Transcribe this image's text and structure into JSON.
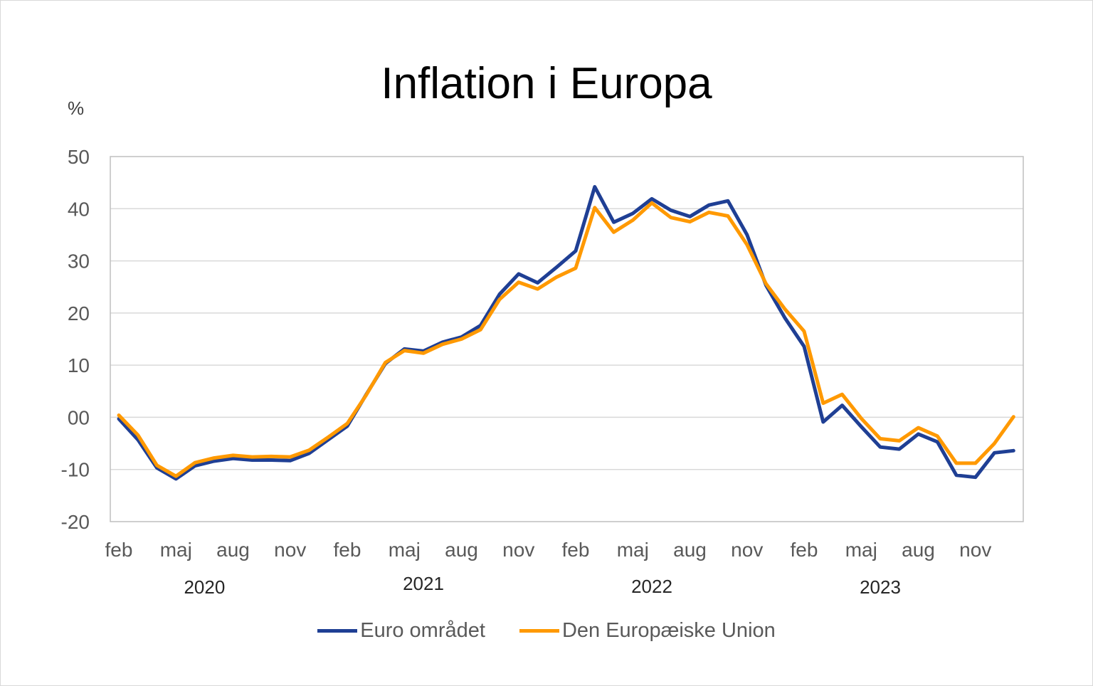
{
  "chart_data": {
    "type": "line",
    "title": "Inflation i Europa",
    "ylabel": "%",
    "xlabel": "",
    "ylim": [
      -20,
      50
    ],
    "yticks": [
      "-20",
      "-10",
      "00",
      "10",
      "20",
      "30",
      "40",
      "50"
    ],
    "ytick_values": [
      -20,
      -10,
      0,
      10,
      20,
      30,
      40,
      50
    ],
    "grid": true,
    "legend_position": "bottom",
    "x_month_labels": [
      {
        "label": "feb",
        "index": 0
      },
      {
        "label": "maj",
        "index": 3
      },
      {
        "label": "aug",
        "index": 6
      },
      {
        "label": "nov",
        "index": 9
      },
      {
        "label": "feb",
        "index": 12
      },
      {
        "label": "maj",
        "index": 15
      },
      {
        "label": "aug",
        "index": 18
      },
      {
        "label": "nov",
        "index": 21
      },
      {
        "label": "feb",
        "index": 24
      },
      {
        "label": "maj",
        "index": 27
      },
      {
        "label": "aug",
        "index": 30
      },
      {
        "label": "nov",
        "index": 33
      },
      {
        "label": "feb",
        "index": 36
      },
      {
        "label": "maj",
        "index": 39
      },
      {
        "label": "aug",
        "index": 42
      },
      {
        "label": "nov",
        "index": 45
      }
    ],
    "x_year_labels": [
      {
        "label": "2020",
        "center": 4.5
      },
      {
        "label": "2021",
        "center": 16
      },
      {
        "label": "2022",
        "center": 28
      },
      {
        "label": "2023",
        "center": 40
      }
    ],
    "series": [
      {
        "name": "Euro området",
        "color": "#1F3F94",
        "values": [
          -0.3,
          -4.3,
          -9.7,
          -11.8,
          -9.3,
          -8.4,
          -7.9,
          -8.2,
          -8.2,
          -8.3,
          -6.9,
          -4.3,
          -1.7,
          4.4,
          10.3,
          13.1,
          12.7,
          14.4,
          15.4,
          17.6,
          23.6,
          27.5,
          25.8,
          28.8,
          31.9,
          44.2,
          37.4,
          39.1,
          41.9,
          39.7,
          38.5,
          40.7,
          41.5,
          35.0,
          25.3,
          19.0,
          13.6,
          -0.9,
          2.3,
          -1.8,
          -5.7,
          -6.1,
          -3.2,
          -4.7,
          -11.1,
          -11.5,
          -6.8,
          -6.4
        ]
      },
      {
        "name": "Den Europæiske Union",
        "color": "#FF9900",
        "values": [
          0.4,
          -3.4,
          -9.2,
          -11.3,
          -8.7,
          -7.8,
          -7.3,
          -7.6,
          -7.5,
          -7.6,
          -6.3,
          -3.8,
          -1.2,
          4.3,
          10.5,
          12.8,
          12.3,
          14.0,
          15.0,
          16.8,
          22.6,
          25.9,
          24.6,
          26.9,
          28.6,
          40.2,
          35.5,
          37.8,
          41.1,
          38.3,
          37.5,
          39.3,
          38.6,
          33.1,
          25.6,
          20.7,
          16.5,
          2.7,
          4.4,
          -0.2,
          -4.1,
          -4.5,
          -2.0,
          -3.6,
          -8.8,
          -8.8,
          -5.0,
          0.1
        ]
      }
    ]
  }
}
